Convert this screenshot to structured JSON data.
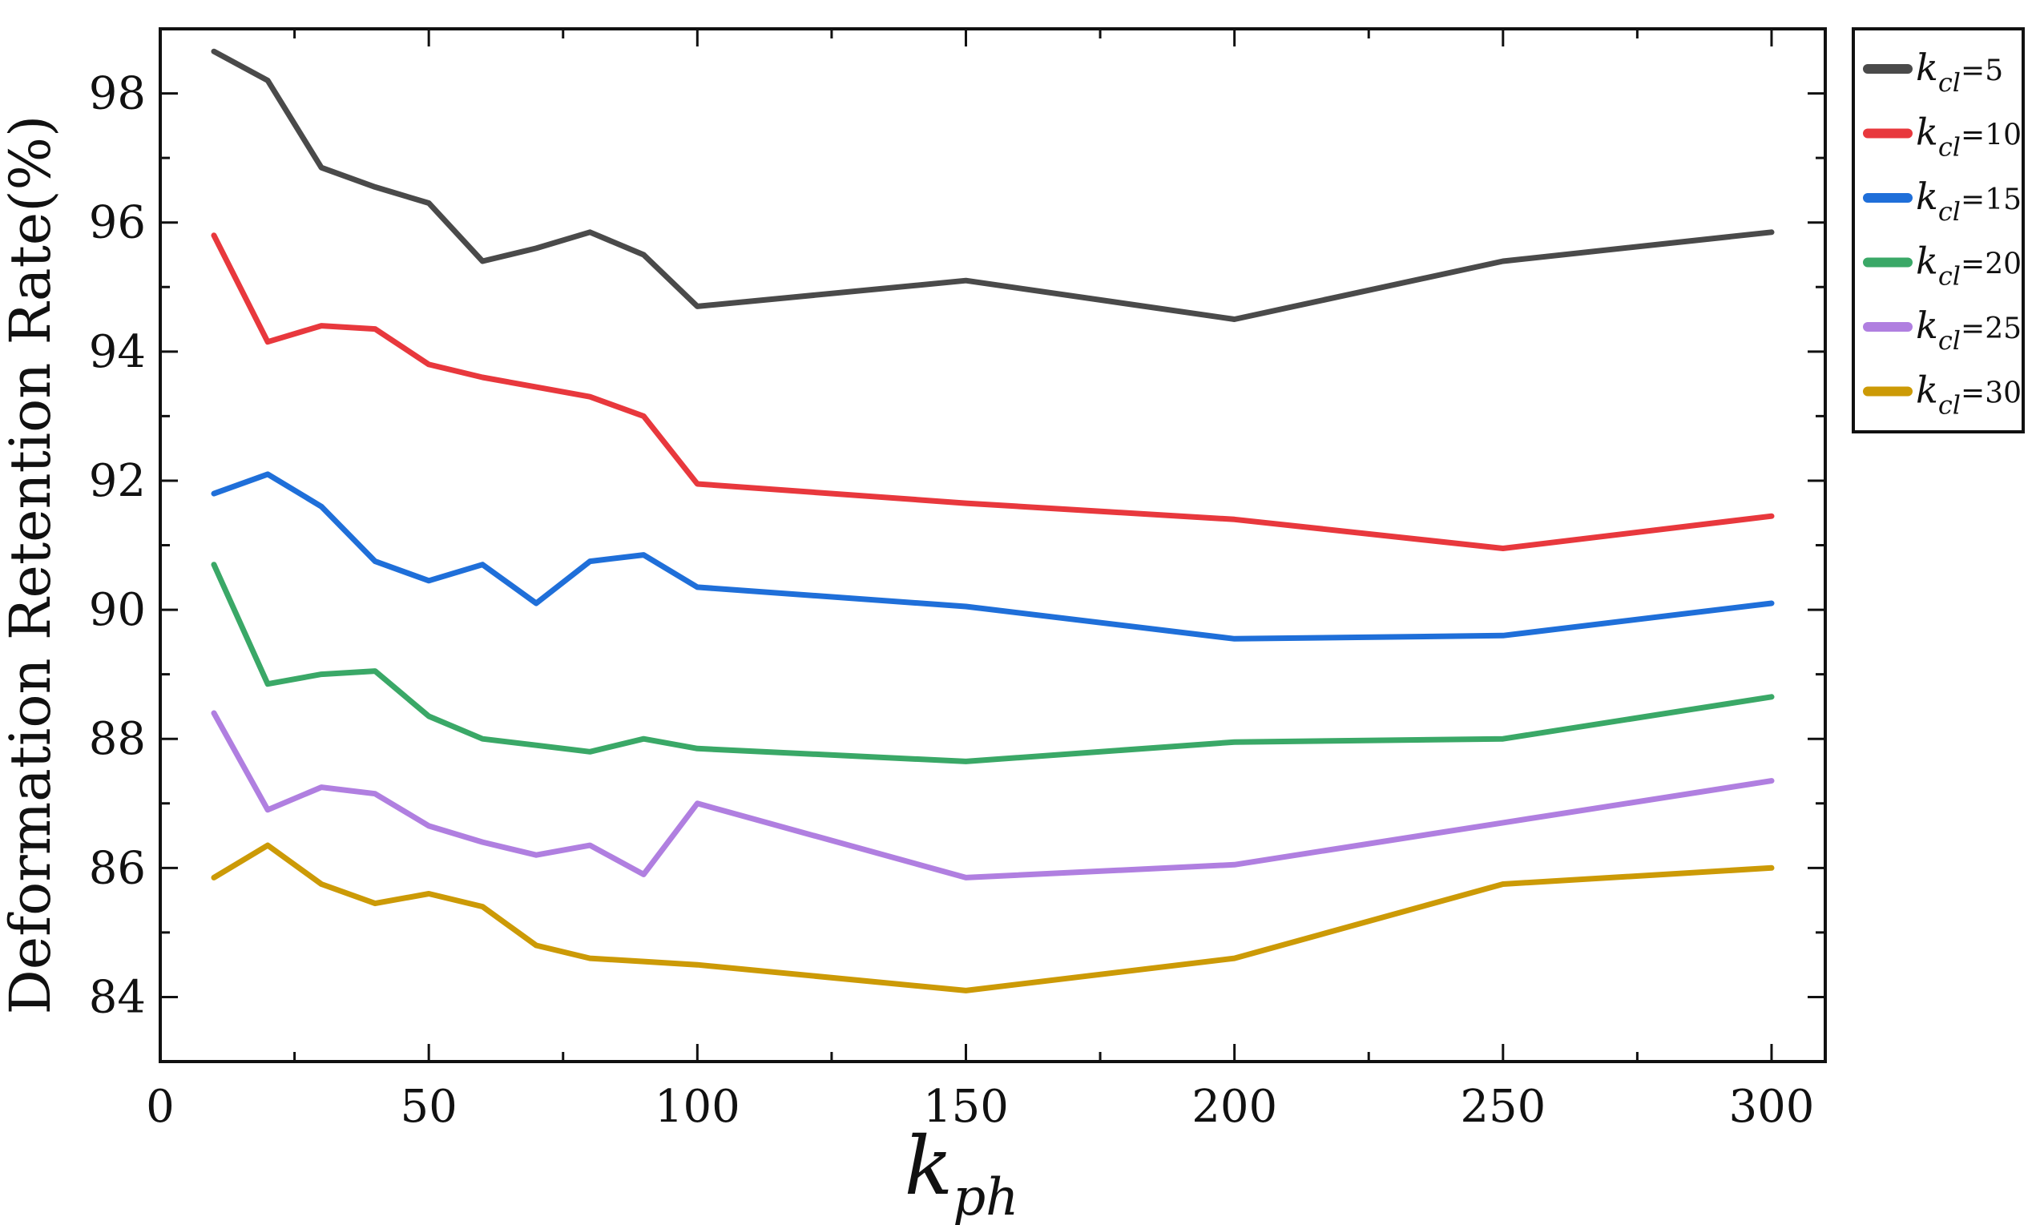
{
  "chart_data": {
    "type": "line",
    "xlabel": {
      "base": "k",
      "sub": "ph"
    },
    "ylabel": "Deformation Retention Rate(%)",
    "xlim": [
      0,
      310
    ],
    "ylim": [
      83,
      99
    ],
    "xticks": [
      0,
      50,
      100,
      150,
      200,
      250,
      300
    ],
    "yticks": [
      84,
      86,
      88,
      90,
      92,
      94,
      96,
      98
    ],
    "xtick_labels": [
      "0",
      "50",
      "100",
      "150",
      "200",
      "250",
      "300"
    ],
    "ytick_labels": [
      "84",
      "86",
      "88",
      "90",
      "92",
      "94",
      "96",
      "98"
    ],
    "grid": false,
    "legend_position": "outside-top-right",
    "x": [
      10,
      20,
      30,
      40,
      50,
      60,
      70,
      80,
      90,
      100,
      150,
      200,
      250,
      300
    ],
    "series": [
      {
        "name": "k_cl=5",
        "label_base": "k",
        "label_sub": "cl",
        "label_value": "=5",
        "color": "#4a4a4a",
        "values": [
          98.65,
          98.2,
          96.85,
          96.55,
          96.3,
          95.4,
          95.6,
          95.85,
          95.5,
          94.7,
          95.1,
          94.5,
          95.4,
          95.85
        ]
      },
      {
        "name": "k_cl=10",
        "label_base": "k",
        "label_sub": "cl",
        "label_value": "=10",
        "color": "#e8383d",
        "values": [
          95.8,
          94.15,
          94.4,
          94.35,
          93.8,
          93.6,
          93.45,
          93.3,
          93.0,
          91.95,
          91.65,
          91.4,
          90.95,
          91.45
        ]
      },
      {
        "name": "k_cl=15",
        "label_base": "k",
        "label_sub": "cl",
        "label_value": "=15",
        "color": "#1f6fd9",
        "values": [
          91.8,
          92.1,
          91.6,
          90.75,
          90.45,
          90.7,
          90.1,
          90.75,
          90.85,
          90.35,
          90.05,
          89.55,
          89.6,
          90.1
        ]
      },
      {
        "name": "k_cl=20",
        "label_base": "k",
        "label_sub": "cl",
        "label_value": "=20",
        "color": "#3aa867",
        "values": [
          90.7,
          88.85,
          89.0,
          89.05,
          88.35,
          88.0,
          87.9,
          87.8,
          88.0,
          87.85,
          87.65,
          87.95,
          88.0,
          88.65
        ]
      },
      {
        "name": "k_cl=25",
        "label_base": "k",
        "label_sub": "cl",
        "label_value": "=25",
        "color": "#b07fe0",
        "values": [
          88.4,
          86.9,
          87.25,
          87.15,
          86.65,
          86.4,
          86.2,
          86.35,
          85.9,
          87.0,
          85.85,
          86.05,
          86.7,
          87.35
        ]
      },
      {
        "name": "k_cl=30",
        "label_base": "k",
        "label_sub": "cl",
        "label_value": "=30",
        "color": "#cc9a06",
        "values": [
          85.85,
          86.35,
          85.75,
          85.45,
          85.6,
          85.4,
          84.8,
          84.6,
          84.55,
          84.5,
          84.1,
          84.6,
          85.75,
          86.0
        ]
      }
    ]
  }
}
